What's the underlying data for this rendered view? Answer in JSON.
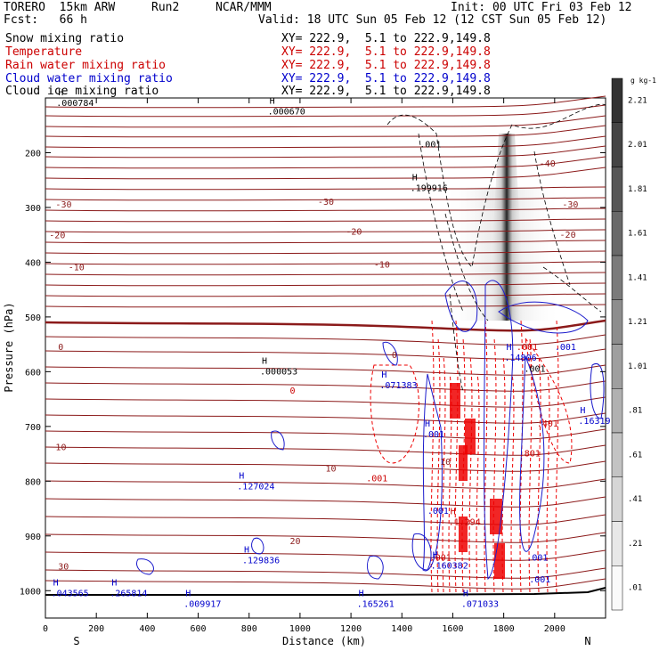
{
  "header": {
    "model": "TORERO  15km ARW",
    "run": "Run2",
    "org": "NCAR/MMM",
    "init": "Init: 00 UTC Fri 03 Feb 12",
    "fcst": "Fcst:   66 h",
    "valid": "Valid: 18 UTC Sun 05 Feb 12 (12 CST Sun 05 Feb 12)"
  },
  "fields": [
    {
      "name": "Snow mixing ratio",
      "xy": "XY= 222.9,  5.1 to 222.9,149.8",
      "color": "#000000"
    },
    {
      "name": "Temperature",
      "xy": "XY= 222.9,  5.1 to 222.9,149.8",
      "color": "#cc0000"
    },
    {
      "name": "Rain water mixing ratio",
      "xy": "XY= 222.9,  5.1 to 222.9,149.8",
      "color": "#cc0000"
    },
    {
      "name": "Cloud water mixing ratio",
      "xy": "XY= 222.9,  5.1 to 222.9,149.8",
      "color": "#0000cc"
    },
    {
      "name": "Cloud ice mixing ratio",
      "xy": "XY= 222.9,  5.1 to 222.9,149.8",
      "color": "#000000"
    }
  ],
  "chart_data": {
    "type": "contour",
    "xlabel": "Distance (km)",
    "ylabel": "Pressure (hPa)",
    "x_ticks": [
      0,
      200,
      400,
      600,
      800,
      1000,
      1200,
      1400,
      1600,
      1800,
      2000
    ],
    "y_ticks": [
      200,
      300,
      400,
      500,
      600,
      700,
      800,
      900,
      1000
    ],
    "xlim": [
      0,
      2200
    ],
    "ylim": [
      100,
      1050
    ],
    "x_end_labels": {
      "left": "S",
      "right": "N"
    },
    "colorbar": {
      "unit": "g kg-1",
      "ticks": [
        "2.21",
        "2.01",
        "1.81",
        "1.61",
        "1.41",
        "1.21",
        "1.01",
        ".81",
        ".61",
        ".41",
        ".21",
        ".01"
      ]
    },
    "temperature_contours": [
      {
        "label": "-40",
        "x": 1940,
        "p": 225
      },
      {
        "label": "-30",
        "x": 40,
        "p": 300
      },
      {
        "label": "-30",
        "x": 1070,
        "p": 295
      },
      {
        "label": "-30",
        "x": 2030,
        "p": 300
      },
      {
        "label": "-20",
        "x": 15,
        "p": 356
      },
      {
        "label": "-20",
        "x": 1180,
        "p": 350
      },
      {
        "label": "-20",
        "x": 2020,
        "p": 355
      },
      {
        "label": "-10",
        "x": 90,
        "p": 415
      },
      {
        "label": "-10",
        "x": 1290,
        "p": 410
      },
      {
        "label": "0",
        "x": 50,
        "p": 560
      },
      {
        "label": "0",
        "x": 1360,
        "p": 575
      },
      {
        "label": "10",
        "x": 40,
        "p": 743
      },
      {
        "label": "10",
        "x": 1100,
        "p": 782
      },
      {
        "label": "10",
        "x": 1550,
        "p": 770
      },
      {
        "label": "20",
        "x": 960,
        "p": 915
      },
      {
        "label": "30",
        "x": 50,
        "p": 961
      }
    ],
    "max_markers": [
      {
        "symbol": "H",
        "value": ".000670",
        "x": 880,
        "p": 130,
        "color": "#000000"
      },
      {
        "symbol": "H",
        "value": ".000784",
        "x": 50,
        "p": 115,
        "color": "#000000"
      },
      {
        "symbol": "H",
        "value": ".199916",
        "x": 1440,
        "p": 270,
        "color": "#000000"
      },
      {
        "symbol": "H",
        "value": ".000053",
        "x": 850,
        "p": 605,
        "color": "#000000"
      },
      {
        "symbol": "H",
        "value": ".071383",
        "x": 1320,
        "p": 630,
        "color": "#0000cc"
      },
      {
        "symbol": "H",
        "value": ".001",
        "x": 1490,
        "p": 720,
        "color": "#0000cc"
      },
      {
        "symbol": "H",
        "value": ".127024",
        "x": 760,
        "p": 815,
        "color": "#0000cc"
      },
      {
        "symbol": "H",
        "value": ".129836",
        "x": 780,
        "p": 950,
        "color": "#0000cc"
      },
      {
        "symbol": "H",
        "value": ".043565",
        "x": 30,
        "p": 1010,
        "color": "#0000cc"
      },
      {
        "symbol": "H",
        "value": ".265814",
        "x": 260,
        "p": 1010,
        "color": "#0000cc"
      },
      {
        "symbol": "H",
        "value": ".009917",
        "x": 550,
        "p": 1030,
        "color": "#0000cc"
      },
      {
        "symbol": "H",
        "value": ".165261",
        "x": 1230,
        "p": 1030,
        "color": "#0000cc"
      },
      {
        "symbol": "H",
        "value": ".160382",
        "x": 1520,
        "p": 960,
        "color": "#0000cc"
      },
      {
        "symbol": "H",
        "value": ".1.294",
        "x": 1590,
        "p": 880,
        "color": "#cc0000"
      },
      {
        "symbol": "H",
        "value": ".071033",
        "x": 1640,
        "p": 1030,
        "color": "#0000cc"
      },
      {
        "symbol": "H",
        "value": ".14806",
        "x": 1810,
        "p": 580,
        "color": "#0000cc"
      },
      {
        "symbol": "H",
        "value": ".16319",
        "x": 2100,
        "p": 695,
        "color": "#0000cc"
      }
    ],
    "other_labels": [
      {
        "text": ".001",
        "x": 1470,
        "p": 190,
        "color": "#000000"
      },
      {
        "text": ".001",
        "x": 1850,
        "p": 560,
        "color": "#cc0000"
      },
      {
        "text": ".001",
        "x": 2000,
        "p": 560,
        "color": "#0000cc"
      },
      {
        "text": ".001",
        "x": 1880,
        "p": 600,
        "color": "#000000"
      },
      {
        "text": ".401",
        "x": 1930,
        "p": 700,
        "color": "#cc0000"
      },
      {
        "text": ".801",
        "x": 1860,
        "p": 755,
        "color": "#cc0000"
      },
      {
        "text": ".001",
        "x": 1260,
        "p": 800,
        "color": "#cc0000"
      },
      {
        "text": ".001",
        "x": 1500,
        "p": 860,
        "color": "#0000cc"
      },
      {
        "text": ".001",
        "x": 1510,
        "p": 945,
        "color": "#cc0000"
      },
      {
        "text": ".001",
        "x": 1890,
        "p": 945,
        "color": "#0000cc"
      },
      {
        "text": ".001",
        "x": 1900,
        "p": 985,
        "color": "#0000cc"
      },
      {
        "text": "0",
        "x": 960,
        "p": 640,
        "color": "#cc0000"
      }
    ]
  },
  "colors": {
    "temperature": "#8b1a1a",
    "rain": "#ee0000",
    "cloud_water": "#1a1acc",
    "snow": "#000000"
  }
}
